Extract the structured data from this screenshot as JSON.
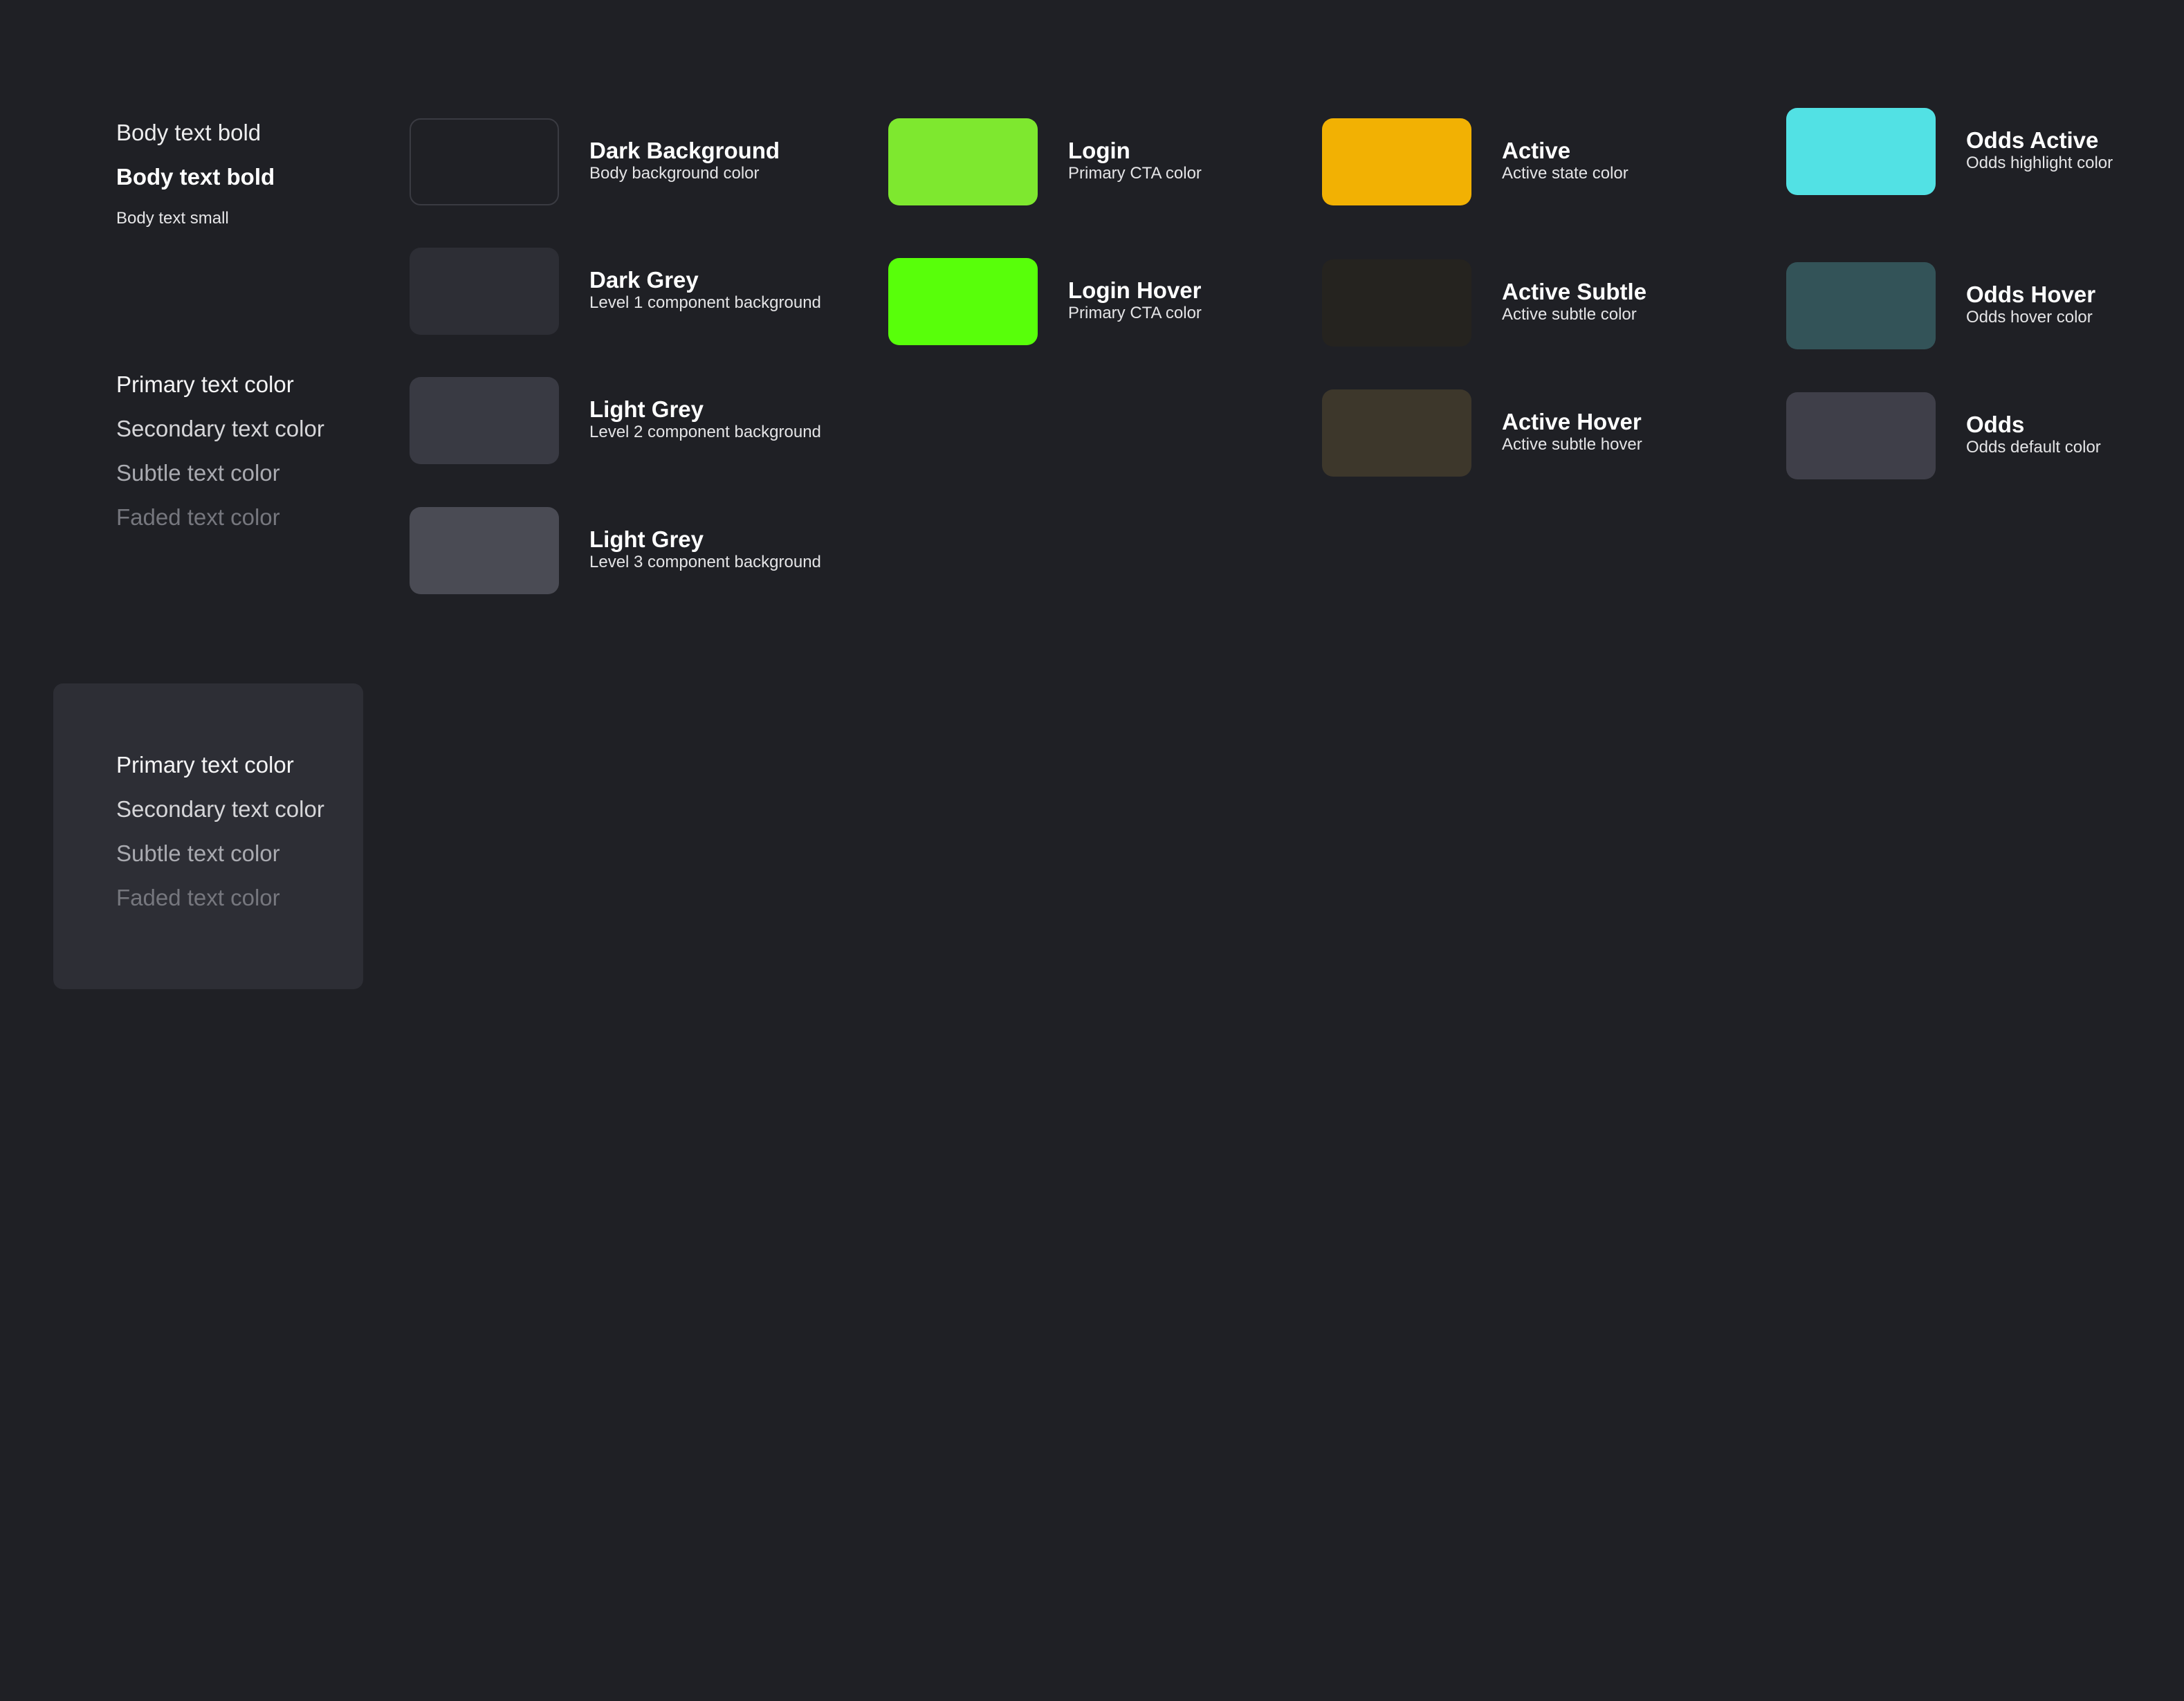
{
  "typography": {
    "body_regular": "Body text bold",
    "body_bold": "Body text bold",
    "body_small": "Body text small"
  },
  "text_colors_dark": {
    "items": [
      {
        "label": "Primary text color",
        "color": "#f4f4f5"
      },
      {
        "label": "Secondary text color",
        "color": "#d6d6d9"
      },
      {
        "label": "Subtle text color",
        "color": "#a9aab0"
      },
      {
        "label": "Faded text color",
        "color": "#76777e"
      }
    ]
  },
  "text_colors_panel": {
    "background": "#2d2e35",
    "items": [
      {
        "label": "Primary text color",
        "color": "#f4f4f5"
      },
      {
        "label": "Secondary text color",
        "color": "#d6d6d9"
      },
      {
        "label": "Subtle text color",
        "color": "#a9aab0"
      },
      {
        "label": "Faded text color",
        "color": "#76777e"
      }
    ]
  },
  "swatches": {
    "dark_background": {
      "title": "Dark Background",
      "desc": "Body background color",
      "color": "#1f2025",
      "border": "#3a3b42"
    },
    "dark_grey": {
      "title": "Dark Grey",
      "desc": "Level 1 component background",
      "color": "#2d2e35"
    },
    "light_grey_2": {
      "title": "Light Grey",
      "desc": "Level 2 component background",
      "color": "#393a43"
    },
    "light_grey_3": {
      "title": "Light Grey",
      "desc": "Level 3 component background",
      "color": "#4a4b54"
    },
    "login": {
      "title": "Login",
      "desc": "Primary CTA color",
      "color": "#7ee82f"
    },
    "login_hover": {
      "title": "Login Hover",
      "desc": "Primary CTA color",
      "color": "#58ff0a"
    },
    "active": {
      "title": "Active",
      "desc": "Active state color",
      "color": "#f2b103"
    },
    "active_subtle": {
      "title": "Active Subtle",
      "desc": "Active subtle color",
      "color": "#25231f"
    },
    "active_hover": {
      "title": "Active Hover",
      "desc": "Active subtle hover",
      "color": "#3d372b"
    },
    "odds_active": {
      "title": "Odds Active",
      "desc": "Odds highlight color",
      "color": "#52e1e4"
    },
    "odds_hover": {
      "title": "Odds Hover",
      "desc": "Odds hover color",
      "color": "#335358"
    },
    "odds": {
      "title": "Odds",
      "desc": "Odds default color",
      "color": "#3f3f49"
    }
  }
}
